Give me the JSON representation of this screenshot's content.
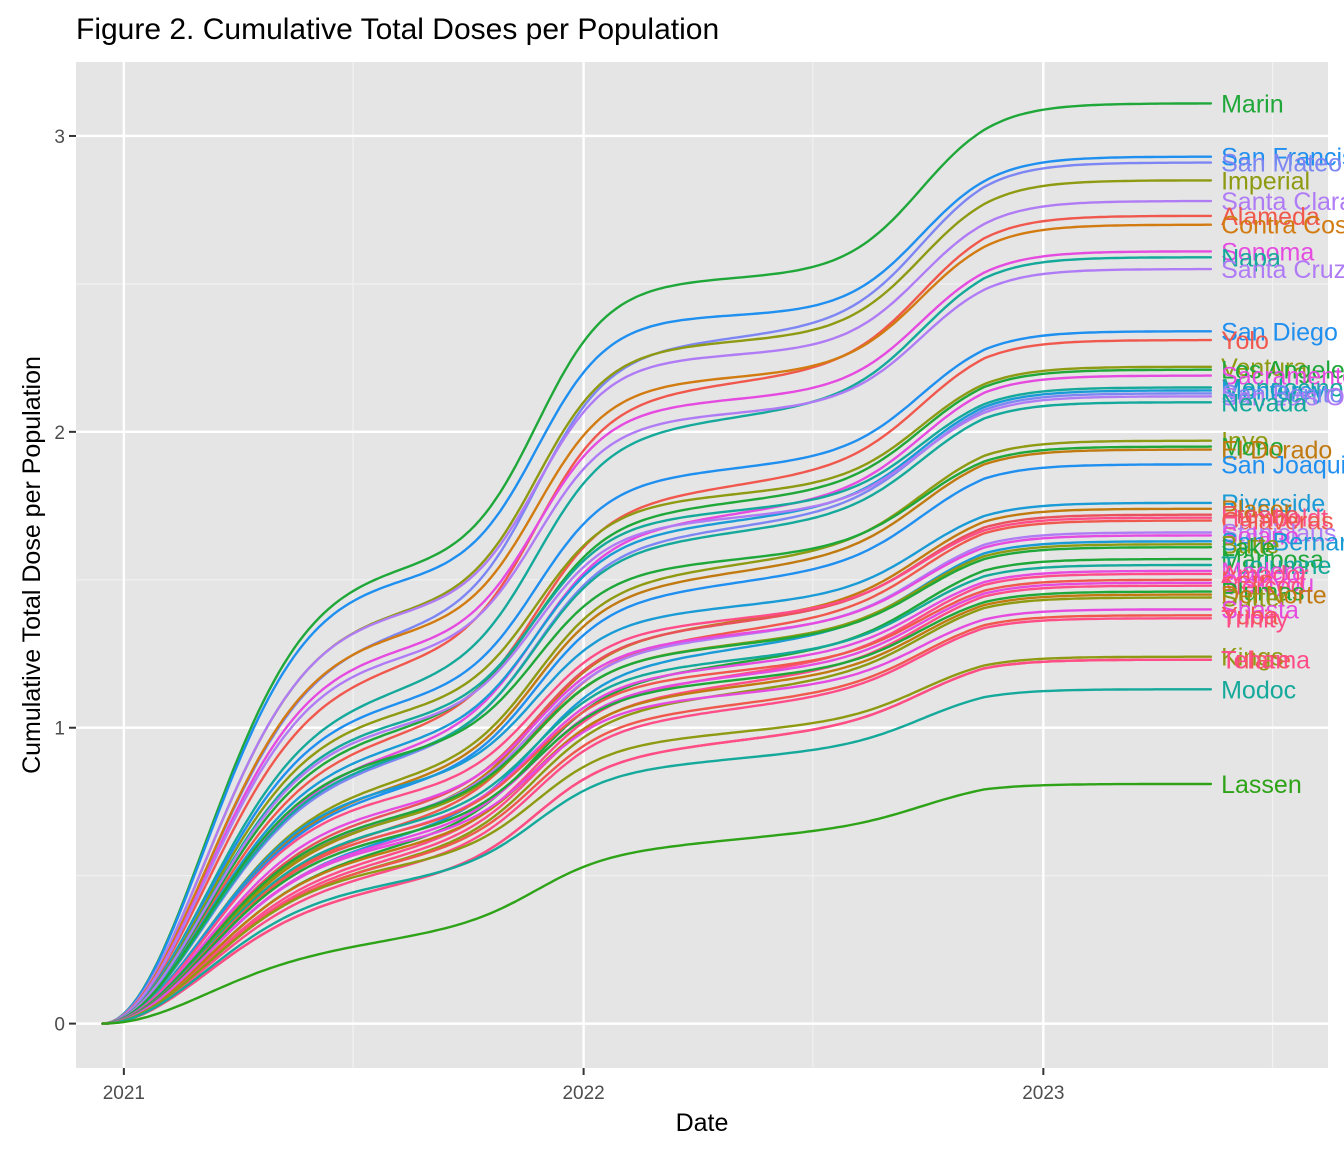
{
  "chart_data": {
    "type": "line",
    "title": "Figure 2. Cumulative Total Doses per Population",
    "xlabel": "Date",
    "ylabel": "Cumulative Total Dose per Population",
    "x_start": "2020-12-15",
    "x_end": "2023-05-15",
    "xlim": [
      "2020-11-24",
      "2023-08-15"
    ],
    "ylim": [
      -0.15,
      3.25
    ],
    "x_ticks": [
      "2021",
      "2022",
      "2023"
    ],
    "y_ticks": [
      "0",
      "1",
      "2",
      "3"
    ],
    "grid": true,
    "legend": "none",
    "background": "#e5e5e5",
    "series": [
      {
        "name": "Marin",
        "final": 3.11,
        "color": "#1fa839"
      },
      {
        "name": "San Francisco",
        "final": 2.93,
        "color": "#1f8ff0"
      },
      {
        "name": "San Mateo",
        "final": 2.91,
        "color": "#7d86f3"
      },
      {
        "name": "Imperial",
        "final": 2.85,
        "color": "#8e9a11"
      },
      {
        "name": "Santa Clara",
        "final": 2.78,
        "color": "#b07cf5"
      },
      {
        "name": "Alameda",
        "final": 2.73,
        "color": "#f0584e"
      },
      {
        "name": "Contra Costa",
        "final": 2.7,
        "color": "#d27b11"
      },
      {
        "name": "Sonoma",
        "final": 2.61,
        "color": "#e54be0"
      },
      {
        "name": "Napa",
        "final": 2.59,
        "color": "#15a99b"
      },
      {
        "name": "Santa Cruz",
        "final": 2.55,
        "color": "#b07cf5"
      },
      {
        "name": "San Diego",
        "final": 2.34,
        "color": "#1f8ff0"
      },
      {
        "name": "Yolo",
        "final": 2.31,
        "color": "#f0584e"
      },
      {
        "name": "Ventura",
        "final": 2.22,
        "color": "#8e9a11"
      },
      {
        "name": "Los Angeles",
        "final": 2.21,
        "color": "#1fa839"
      },
      {
        "name": "Sacramento",
        "final": 2.19,
        "color": "#e54be0"
      },
      {
        "name": "Mendocino",
        "final": 2.15,
        "color": "#15a99b"
      },
      {
        "name": "Monterey",
        "final": 2.14,
        "color": "#1a9bd6"
      },
      {
        "name": "San Benito",
        "final": 2.13,
        "color": "#7d86f3"
      },
      {
        "name": "San Luis Obispo",
        "final": 2.12,
        "color": "#b07cf5"
      },
      {
        "name": "Nevada",
        "final": 2.1,
        "color": "#15a99b"
      },
      {
        "name": "Inyo",
        "final": 1.97,
        "color": "#8e9a11"
      },
      {
        "name": "Mono",
        "final": 1.95,
        "color": "#1fa839"
      },
      {
        "name": "El Dorado",
        "final": 1.94,
        "color": "#c07a10"
      },
      {
        "name": "San Joaquin",
        "final": 1.89,
        "color": "#1f8ff0"
      },
      {
        "name": "Riverside",
        "final": 1.76,
        "color": "#1a9bd6"
      },
      {
        "name": "Placer",
        "final": 1.74,
        "color": "#c07a10"
      },
      {
        "name": "Fresno",
        "final": 1.72,
        "color": "#e8525a"
      },
      {
        "name": "Humboldt",
        "final": 1.71,
        "color": "#ff4d88"
      },
      {
        "name": "Calaveras",
        "final": 1.7,
        "color": "#f0584e"
      },
      {
        "name": "Stanislaus",
        "final": 1.66,
        "color": "#b07cf5"
      },
      {
        "name": "Solano",
        "final": 1.65,
        "color": "#e54be0"
      },
      {
        "name": "San Bernardino",
        "final": 1.63,
        "color": "#1a9bd6"
      },
      {
        "name": "Butte",
        "final": 1.62,
        "color": "#8e9a11"
      },
      {
        "name": "Lake",
        "final": 1.61,
        "color": "#1fa839"
      },
      {
        "name": "Mariposa",
        "final": 1.57,
        "color": "#1fa839"
      },
      {
        "name": "Tuolumne",
        "final": 1.55,
        "color": "#15a99b"
      },
      {
        "name": "Madera",
        "final": 1.53,
        "color": "#e54be0"
      },
      {
        "name": "Amador",
        "final": 1.52,
        "color": "#ff4d88"
      },
      {
        "name": "Kern",
        "final": 1.5,
        "color": "#f0584e"
      },
      {
        "name": "Siskiyou",
        "final": 1.49,
        "color": "#e54be0"
      },
      {
        "name": "Merced",
        "final": 1.48,
        "color": "#ff4d88"
      },
      {
        "name": "Plumas",
        "final": 1.46,
        "color": "#1fa839"
      },
      {
        "name": "Del Norte",
        "final": 1.45,
        "color": "#c07a10"
      },
      {
        "name": "Sutter",
        "final": 1.44,
        "color": "#8e9a11"
      },
      {
        "name": "Shasta",
        "final": 1.4,
        "color": "#e54be0"
      },
      {
        "name": "Yuba",
        "final": 1.38,
        "color": "#f0584e"
      },
      {
        "name": "Trinity",
        "final": 1.37,
        "color": "#ff4d88"
      },
      {
        "name": "Kings",
        "final": 1.24,
        "color": "#8e9a11"
      },
      {
        "name": "Tulare",
        "final": 1.23,
        "color": "#f0584e"
      },
      {
        "name": "Tehama",
        "final": 1.23,
        "color": "#ff4d88"
      },
      {
        "name": "Modoc",
        "final": 1.13,
        "color": "#15a99b"
      },
      {
        "name": "Lassen",
        "final": 0.81,
        "color": "#2ea318"
      }
    ]
  }
}
